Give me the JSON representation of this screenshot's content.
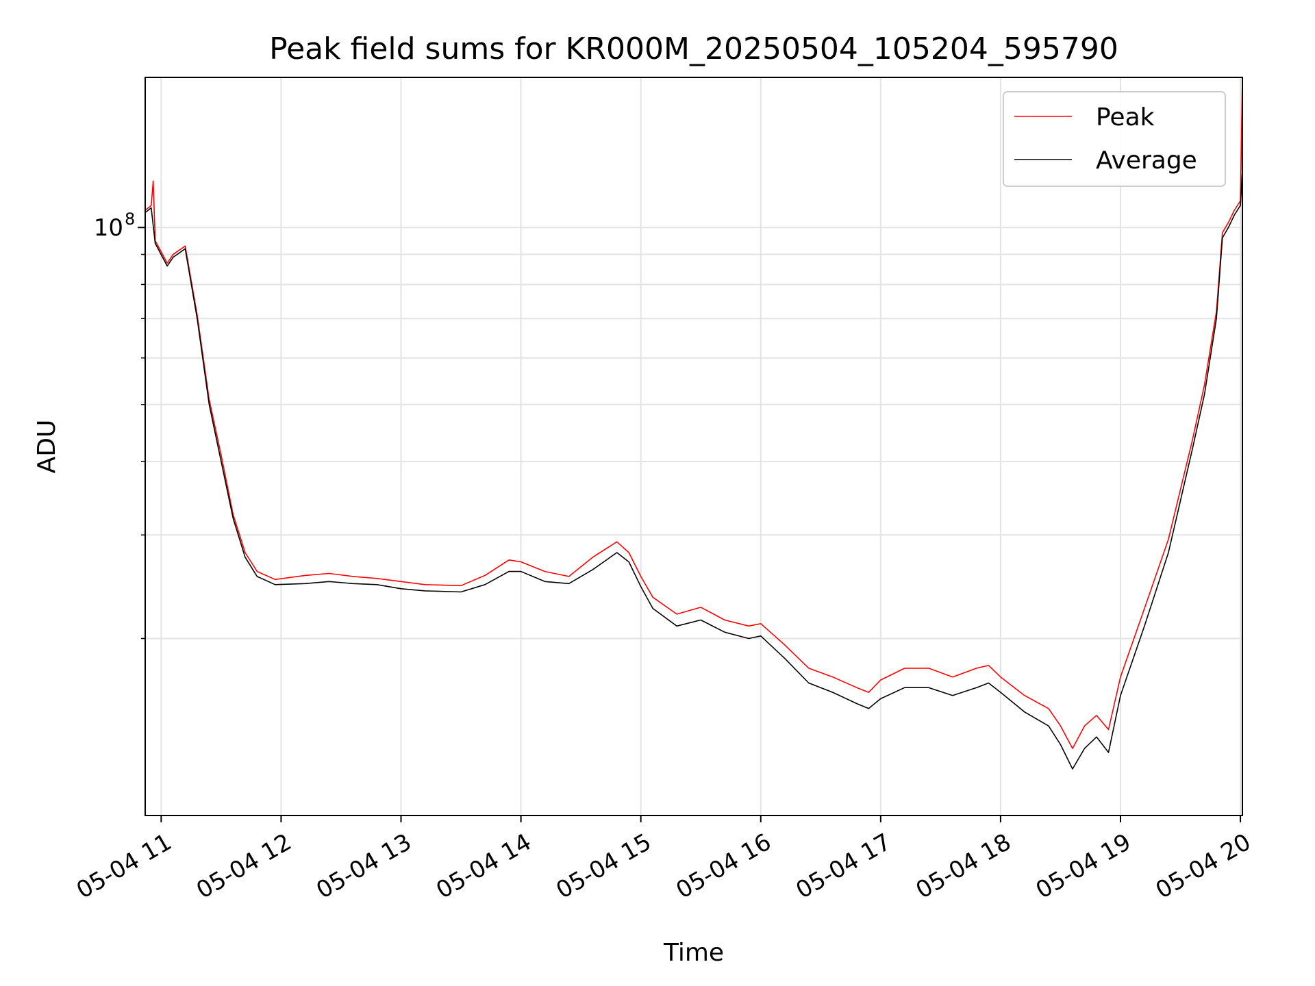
{
  "chart_data": {
    "type": "line",
    "title": "Peak field sums for KR000M_20250504_105204_595790",
    "xlabel": "Time",
    "ylabel": "ADU",
    "x_axis": "datetime",
    "y_scale": "log",
    "xlim": [
      "2025-05-04 10:52",
      "2025-05-04 20:01"
    ],
    "ylim": [
      10000000,
      180000000
    ],
    "grid": true,
    "legend_position": "top-right",
    "xticks": [
      {
        "t": "2025-05-04 11:00",
        "label": "05-04 11"
      },
      {
        "t": "2025-05-04 12:00",
        "label": "05-04 12"
      },
      {
        "t": "2025-05-04 13:00",
        "label": "05-04 13"
      },
      {
        "t": "2025-05-04 14:00",
        "label": "05-04 14"
      },
      {
        "t": "2025-05-04 15:00",
        "label": "05-04 15"
      },
      {
        "t": "2025-05-04 16:00",
        "label": "05-04 16"
      },
      {
        "t": "2025-05-04 17:00",
        "label": "05-04 17"
      },
      {
        "t": "2025-05-04 18:00",
        "label": "05-04 18"
      },
      {
        "t": "2025-05-04 19:00",
        "label": "05-04 19"
      },
      {
        "t": "2025-05-04 20:00",
        "label": "05-04 20"
      }
    ],
    "yticks_major": [
      {
        "value": 100000000,
        "label": "10",
        "exp": "8"
      }
    ],
    "yticks_minor": [
      20000000,
      30000000,
      40000000,
      50000000,
      60000000,
      70000000,
      80000000,
      90000000
    ],
    "series": [
      {
        "name": "Average",
        "color": "#000000",
        "points": [
          [
            "2025-05-04 10:52",
            106000000.0
          ],
          [
            "2025-05-04 10:55",
            108000000.0
          ],
          [
            "2025-05-04 10:57",
            94000000.0
          ],
          [
            "2025-05-04 11:03",
            86000000.0
          ],
          [
            "2025-05-04 11:06",
            89000000.0
          ],
          [
            "2025-05-04 11:12",
            92000000.0
          ],
          [
            "2025-05-04 11:18",
            70000000.0
          ],
          [
            "2025-05-04 11:24",
            50000000.0
          ],
          [
            "2025-05-04 11:30",
            40000000.0
          ],
          [
            "2025-05-04 11:36",
            32000000.0
          ],
          [
            "2025-05-04 11:42",
            27500000.0
          ],
          [
            "2025-05-04 11:48",
            25500000.0
          ],
          [
            "2025-05-04 11:57",
            24700000.0
          ],
          [
            "2025-05-04 12:12",
            24800000.0
          ],
          [
            "2025-05-04 12:24",
            25000000.0
          ],
          [
            "2025-05-04 12:36",
            24800000.0
          ],
          [
            "2025-05-04 12:48",
            24700000.0
          ],
          [
            "2025-05-04 13:00",
            24300000.0
          ],
          [
            "2025-05-04 13:12",
            24100000.0
          ],
          [
            "2025-05-04 13:30",
            24000000.0
          ],
          [
            "2025-05-04 13:42",
            24700000.0
          ],
          [
            "2025-05-04 13:54",
            26000000.0
          ],
          [
            "2025-05-04 14:00",
            26000000.0
          ],
          [
            "2025-05-04 14:12",
            25000000.0
          ],
          [
            "2025-05-04 14:24",
            24800000.0
          ],
          [
            "2025-05-04 14:36",
            26200000.0
          ],
          [
            "2025-05-04 14:48",
            28000000.0
          ],
          [
            "2025-05-04 14:54",
            27000000.0
          ],
          [
            "2025-05-04 15:00",
            24500000.0
          ],
          [
            "2025-05-04 15:06",
            22500000.0
          ],
          [
            "2025-05-04 15:18",
            21000000.0
          ],
          [
            "2025-05-04 15:30",
            21500000.0
          ],
          [
            "2025-05-04 15:42",
            20500000.0
          ],
          [
            "2025-05-04 15:54",
            20000000.0
          ],
          [
            "2025-05-04 16:00",
            20200000.0
          ],
          [
            "2025-05-04 16:12",
            18500000.0
          ],
          [
            "2025-05-04 16:24",
            16800000.0
          ],
          [
            "2025-05-04 16:36",
            16200000.0
          ],
          [
            "2025-05-04 16:48",
            15500000.0
          ],
          [
            "2025-05-04 16:54",
            15200000.0
          ],
          [
            "2025-05-04 17:00",
            15800000.0
          ],
          [
            "2025-05-04 17:12",
            16500000.0
          ],
          [
            "2025-05-04 17:24",
            16500000.0
          ],
          [
            "2025-05-04 17:36",
            16000000.0
          ],
          [
            "2025-05-04 17:48",
            16500000.0
          ],
          [
            "2025-05-04 17:54",
            16800000.0
          ],
          [
            "2025-05-04 18:00",
            16200000.0
          ],
          [
            "2025-05-04 18:12",
            15000000.0
          ],
          [
            "2025-05-04 18:24",
            14200000.0
          ],
          [
            "2025-05-04 18:30",
            13200000.0
          ],
          [
            "2025-05-04 18:36",
            12000000.0
          ],
          [
            "2025-05-04 18:42",
            13000000.0
          ],
          [
            "2025-05-04 18:48",
            13600000.0
          ],
          [
            "2025-05-04 18:54",
            12800000.0
          ],
          [
            "2025-05-04 19:00",
            16000000.0
          ],
          [
            "2025-05-04 19:12",
            21000000.0
          ],
          [
            "2025-05-04 19:24",
            28000000.0
          ],
          [
            "2025-05-04 19:36",
            42000000.0
          ],
          [
            "2025-05-04 19:42",
            52000000.0
          ],
          [
            "2025-05-04 19:48",
            70000000.0
          ],
          [
            "2025-05-04 19:51",
            96000000.0
          ],
          [
            "2025-05-04 19:54",
            100000000.0
          ],
          [
            "2025-05-04 19:57",
            105000000.0
          ],
          [
            "2025-05-04 20:00",
            109000000.0
          ],
          [
            "2025-05-04 20:01",
            125000000.0
          ]
        ]
      },
      {
        "name": "Peak",
        "color": "#ff0000",
        "points": [
          [
            "2025-05-04 10:52",
            107000000.0
          ],
          [
            "2025-05-04 10:55",
            109000000.0
          ],
          [
            "2025-05-04 10:56",
            120000000.0
          ],
          [
            "2025-05-04 10:57",
            95000000.0
          ],
          [
            "2025-05-04 11:03",
            87000000.0
          ],
          [
            "2025-05-04 11:06",
            90000000.0
          ],
          [
            "2025-05-04 11:12",
            93000000.0
          ],
          [
            "2025-05-04 11:18",
            71000000.0
          ],
          [
            "2025-05-04 11:24",
            51000000.0
          ],
          [
            "2025-05-04 11:30",
            41000000.0
          ],
          [
            "2025-05-04 11:36",
            32500000.0
          ],
          [
            "2025-05-04 11:42",
            28000000.0
          ],
          [
            "2025-05-04 11:48",
            26000000.0
          ],
          [
            "2025-05-04 11:57",
            25200000.0
          ],
          [
            "2025-05-04 12:12",
            25600000.0
          ],
          [
            "2025-05-04 12:24",
            25800000.0
          ],
          [
            "2025-05-04 12:36",
            25500000.0
          ],
          [
            "2025-05-04 12:48",
            25300000.0
          ],
          [
            "2025-05-04 13:00",
            25000000.0
          ],
          [
            "2025-05-04 13:12",
            24700000.0
          ],
          [
            "2025-05-04 13:30",
            24600000.0
          ],
          [
            "2025-05-04 13:42",
            25600000.0
          ],
          [
            "2025-05-04 13:54",
            27200000.0
          ],
          [
            "2025-05-04 14:00",
            27000000.0
          ],
          [
            "2025-05-04 14:12",
            26000000.0
          ],
          [
            "2025-05-04 14:24",
            25500000.0
          ],
          [
            "2025-05-04 14:36",
            27500000.0
          ],
          [
            "2025-05-04 14:48",
            29200000.0
          ],
          [
            "2025-05-04 14:54",
            28000000.0
          ],
          [
            "2025-05-04 15:00",
            25500000.0
          ],
          [
            "2025-05-04 15:06",
            23500000.0
          ],
          [
            "2025-05-04 15:18",
            22000000.0
          ],
          [
            "2025-05-04 15:30",
            22600000.0
          ],
          [
            "2025-05-04 15:42",
            21500000.0
          ],
          [
            "2025-05-04 15:54",
            21000000.0
          ],
          [
            "2025-05-04 16:00",
            21200000.0
          ],
          [
            "2025-05-04 16:12",
            19500000.0
          ],
          [
            "2025-05-04 16:24",
            17800000.0
          ],
          [
            "2025-05-04 16:36",
            17200000.0
          ],
          [
            "2025-05-04 16:48",
            16500000.0
          ],
          [
            "2025-05-04 16:54",
            16200000.0
          ],
          [
            "2025-05-04 17:00",
            17000000.0
          ],
          [
            "2025-05-04 17:12",
            17800000.0
          ],
          [
            "2025-05-04 17:24",
            17800000.0
          ],
          [
            "2025-05-04 17:36",
            17200000.0
          ],
          [
            "2025-05-04 17:48",
            17800000.0
          ],
          [
            "2025-05-04 17:54",
            18000000.0
          ],
          [
            "2025-05-04 18:00",
            17200000.0
          ],
          [
            "2025-05-04 18:12",
            16000000.0
          ],
          [
            "2025-05-04 18:24",
            15200000.0
          ],
          [
            "2025-05-04 18:30",
            14200000.0
          ],
          [
            "2025-05-04 18:36",
            13000000.0
          ],
          [
            "2025-05-04 18:42",
            14200000.0
          ],
          [
            "2025-05-04 18:48",
            14800000.0
          ],
          [
            "2025-05-04 18:54",
            14000000.0
          ],
          [
            "2025-05-04 19:00",
            17200000.0
          ],
          [
            "2025-05-04 19:12",
            22500000.0
          ],
          [
            "2025-05-04 19:24",
            29500000.0
          ],
          [
            "2025-05-04 19:36",
            43500000.0
          ],
          [
            "2025-05-04 19:42",
            54000000.0
          ],
          [
            "2025-05-04 19:48",
            72000000.0
          ],
          [
            "2025-05-04 19:51",
            98000000.0
          ],
          [
            "2025-05-04 19:54",
            102000000.0
          ],
          [
            "2025-05-04 19:57",
            107000000.0
          ],
          [
            "2025-05-04 20:00",
            111000000.0
          ],
          [
            "2025-05-04 20:01",
            180000000.0
          ]
        ]
      }
    ],
    "legend": [
      {
        "label": "Peak",
        "color": "#ff0000"
      },
      {
        "label": "Average",
        "color": "#000000"
      }
    ]
  }
}
